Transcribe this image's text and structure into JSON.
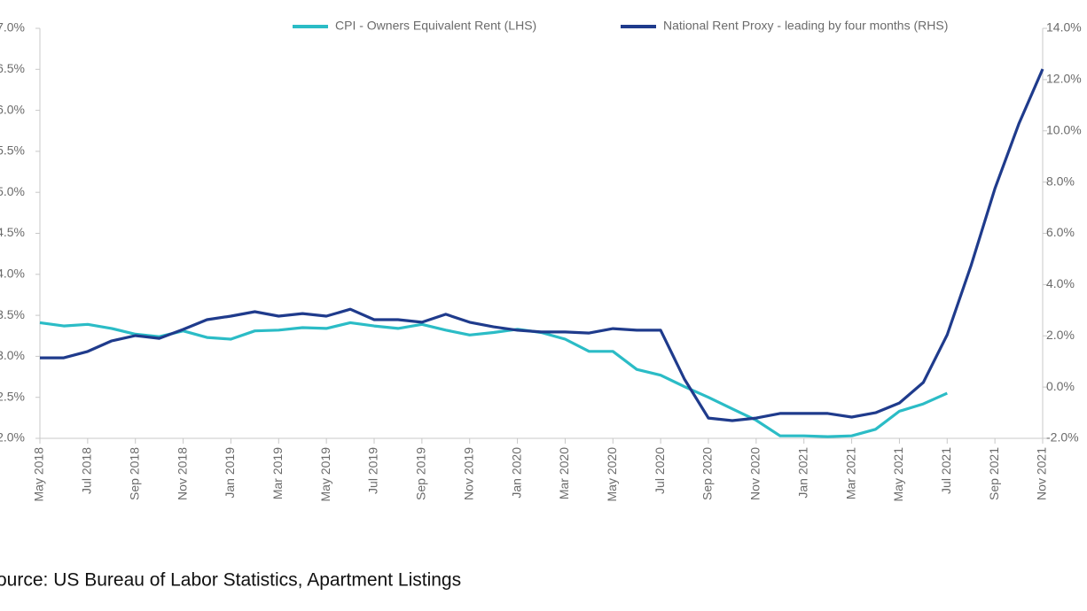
{
  "chart_data": {
    "type": "line",
    "categories": [
      "May 2018",
      null,
      "Jul 2018",
      null,
      "Sep 2018",
      null,
      "Nov 2018",
      null,
      "Jan 2019",
      null,
      "Mar 2019",
      null,
      "May 2019",
      null,
      "Jul 2019",
      null,
      "Sep 2019",
      null,
      "Nov 2019",
      null,
      "Jan 2020",
      null,
      "Mar 2020",
      null,
      "May 2020",
      null,
      "Jul 2020",
      null,
      "Sep 2020",
      null,
      "Nov 2020",
      null,
      "Jan 2021",
      null,
      "Mar 2021",
      null,
      "May 2021",
      null,
      "Jul 2021",
      null,
      "Sep 2021",
      null,
      "Nov 2021"
    ],
    "series": [
      {
        "name": "CPI - Owners Equivalent Rent (LHS)",
        "color": "#2bbcc6",
        "axis": "y",
        "values": [
          3.41,
          3.37,
          3.39,
          3.34,
          3.27,
          3.24,
          3.31,
          3.23,
          3.21,
          3.31,
          3.32,
          3.35,
          3.34,
          3.41,
          3.37,
          3.34,
          3.39,
          3.32,
          3.26,
          3.29,
          3.33,
          3.29,
          3.21,
          3.06,
          3.06,
          2.84,
          2.77,
          2.63,
          2.5,
          2.36,
          2.22,
          2.03,
          2.03,
          2.02,
          2.03,
          2.11,
          2.33,
          2.42,
          2.55,
          null,
          null,
          null,
          null
        ]
      },
      {
        "name": "National Rent Proxy - leading by four months (RHS)",
        "color": "#1f3b8c",
        "axis": "y2",
        "values": [
          1.14,
          1.14,
          1.39,
          1.8,
          2.01,
          1.9,
          2.25,
          2.63,
          2.77,
          2.94,
          2.77,
          2.87,
          2.77,
          3.04,
          2.63,
          2.63,
          2.53,
          2.84,
          2.53,
          2.35,
          2.22,
          2.15,
          2.15,
          2.11,
          2.28,
          2.22,
          2.22,
          0.3,
          -1.21,
          -1.31,
          -1.21,
          -1.03,
          -1.03,
          -1.03,
          -1.17,
          -1.0,
          -0.62,
          0.18,
          2.04,
          4.74,
          7.74,
          10.27,
          12.41
        ]
      }
    ],
    "ylim": [
      2,
      7
    ],
    "yticks": [
      {
        "value": 2,
        "label": "2.0%"
      },
      {
        "value": 2.5,
        "label": "2.5%"
      },
      {
        "value": 3,
        "label": "3.0%"
      },
      {
        "value": 3.5,
        "label": "3.5%"
      },
      {
        "value": 4,
        "label": "4.0%"
      },
      {
        "value": 4.5,
        "label": "4.5%"
      },
      {
        "value": 5,
        "label": "5.0%"
      },
      {
        "value": 5.5,
        "label": "5.5%"
      },
      {
        "value": 6,
        "label": "6.0%"
      },
      {
        "value": 6.5,
        "label": "6.5%"
      },
      {
        "value": 7,
        "label": "7.0%"
      }
    ],
    "y2lim": [
      -2,
      14
    ],
    "y2ticks": [
      {
        "value": -2,
        "label": "-2.0%"
      },
      {
        "value": 0,
        "label": "0.0%"
      },
      {
        "value": 2,
        "label": "2.0%"
      },
      {
        "value": 4,
        "label": "4.0%"
      },
      {
        "value": 6,
        "label": "6.0%"
      },
      {
        "value": 8,
        "label": "8.0%"
      },
      {
        "value": 10,
        "label": "10.0%"
      },
      {
        "value": 12,
        "label": "12.0%"
      },
      {
        "value": 14,
        "label": "14.0%"
      }
    ],
    "grid": false,
    "legend": "top",
    "source": "Source: US Bureau of Labor Statistics, Apartment Listings"
  }
}
